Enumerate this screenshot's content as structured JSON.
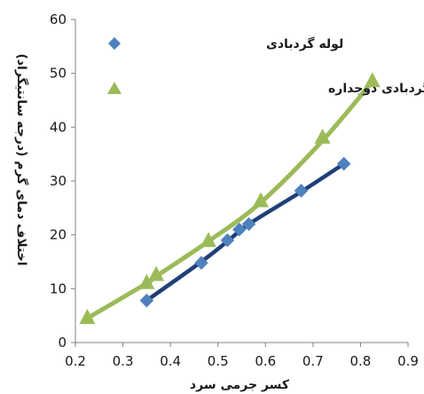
{
  "chart_data": {
    "type": "scatter",
    "xlabel": "کسر جرمی سرد",
    "ylabel": "اختلاف دمای گرم (درجه سانتیگراد)",
    "xlim": [
      0.2,
      0.9
    ],
    "ylim": [
      0,
      60
    ],
    "xticks": [
      "0.2",
      "0.3",
      "0.4",
      "0.5",
      "0.6",
      "0.7",
      "0.8",
      "0.9"
    ],
    "yticks": [
      "0",
      "10",
      "20",
      "30",
      "40",
      "50",
      "60"
    ],
    "grid": false,
    "legend": "top-right",
    "series": [
      {
        "name": "لوله گردبادی",
        "marker": "diamond",
        "marker_color": "#4f81bd",
        "trend_color": "#1f3f7a",
        "x": [
          0.35,
          0.465,
          0.52,
          0.545,
          0.565,
          0.675,
          0.765
        ],
        "y": [
          7.8,
          14.8,
          19.0,
          21.0,
          22.0,
          28.2,
          33.2
        ],
        "trend": [
          [
            0.35,
            7.8
          ],
          [
            0.465,
            15.0
          ],
          [
            0.52,
            18.8
          ],
          [
            0.565,
            22.0
          ],
          [
            0.675,
            28.0
          ],
          [
            0.765,
            33.2
          ]
        ]
      },
      {
        "name": "لوله گردبادی دوجداره",
        "marker": "triangle",
        "marker_color": "#9bbb59",
        "trend_color": "#9bbb59",
        "x": [
          0.225,
          0.35,
          0.37,
          0.48,
          0.59,
          0.72,
          0.825
        ],
        "y": [
          4.5,
          11.0,
          12.5,
          18.8,
          26.2,
          38.0,
          48.5
        ],
        "trend": [
          [
            0.225,
            4.5
          ],
          [
            0.35,
            11.0
          ],
          [
            0.37,
            12.3
          ],
          [
            0.48,
            18.8
          ],
          [
            0.59,
            26.0
          ],
          [
            0.72,
            37.5
          ],
          [
            0.825,
            48.5
          ]
        ]
      }
    ]
  }
}
